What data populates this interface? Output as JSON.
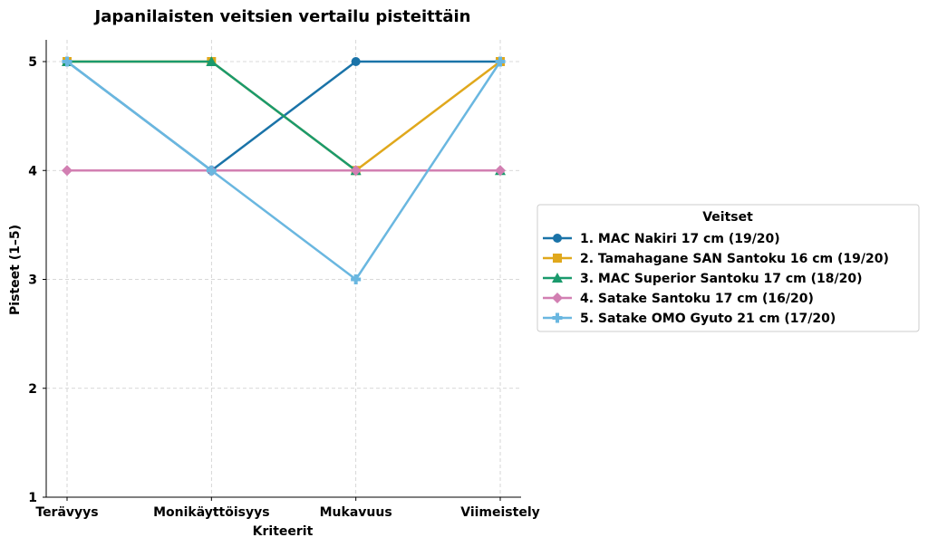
{
  "chart_data": {
    "type": "line",
    "title": "Japanilaisten veitsien vertailu pisteittäin",
    "xlabel": "Kriteerit",
    "ylabel": "Pisteet (1–5)",
    "categories": [
      "Terävyys",
      "Monikäyttöisyys",
      "Mukavuus",
      "Viimeistely"
    ],
    "ylim": [
      1,
      5.2
    ],
    "yticks": [
      "1",
      "2",
      "3",
      "4",
      "5"
    ],
    "grid": true,
    "legend_title": "Veitset",
    "legend_position": "right",
    "series": [
      {
        "name": "1. MAC Nakiri 17 cm (19/20)",
        "values": [
          5,
          4,
          5,
          5
        ],
        "color": "#1a73a8",
        "marker": "circle"
      },
      {
        "name": "2. Tamahagane SAN Santoku 16 cm (19/20)",
        "values": [
          5,
          5,
          4,
          5
        ],
        "color": "#e0a81c",
        "marker": "square"
      },
      {
        "name": "3. MAC Superior Santoku 17 cm (18/20)",
        "values": [
          5,
          5,
          4,
          4
        ],
        "color": "#1a9a6c",
        "marker": "triangle"
      },
      {
        "name": "4. Satake Santoku 17 cm (16/20)",
        "values": [
          4,
          4,
          4,
          4
        ],
        "color": "#d27fb2",
        "marker": "diamond"
      },
      {
        "name": "5. Satake OMO Gyuto 21 cm (17/20)",
        "values": [
          5,
          4,
          3,
          5
        ],
        "color": "#6ab7e0",
        "marker": "plus"
      }
    ]
  }
}
